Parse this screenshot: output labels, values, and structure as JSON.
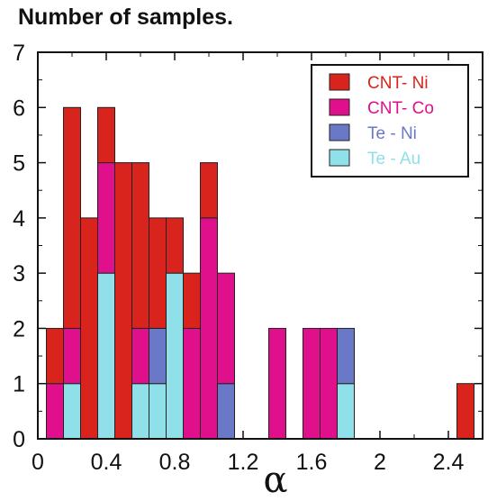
{
  "chart_data": {
    "type": "bar",
    "stacked": true,
    "title": "Number of samples.",
    "xlabel": "α",
    "ylabel": "",
    "xlim": [
      0,
      2.6
    ],
    "ylim": [
      0,
      7
    ],
    "bin_width": 0.1,
    "x_ticks": [
      "0",
      "0.4",
      "0.8",
      "1.2",
      "1.6",
      "2",
      "2.4"
    ],
    "y_ticks": [
      "0",
      "1",
      "2",
      "3",
      "4",
      "5",
      "6",
      "7"
    ],
    "legend_position": "top-right",
    "bin_centers": [
      0.1,
      0.2,
      0.3,
      0.4,
      0.5,
      0.6,
      0.7,
      0.8,
      0.9,
      1.0,
      1.1,
      1.4,
      1.6,
      1.7,
      1.8,
      2.5
    ],
    "series": [
      {
        "name": "Te - Au",
        "color": "#8fe0e8",
        "values": [
          0,
          1,
          0,
          3,
          0,
          1,
          1,
          3,
          0,
          0,
          0,
          0,
          0,
          0,
          1,
          0
        ]
      },
      {
        "name": "Te - Ni",
        "color": "#6a78c8",
        "values": [
          0,
          0,
          0,
          0,
          0,
          0,
          1,
          0,
          0,
          0,
          1,
          0,
          0,
          0,
          1,
          0
        ]
      },
      {
        "name": "CNT- Co",
        "color": "#e0108c",
        "values": [
          1,
          1,
          0,
          2,
          0,
          1,
          0,
          0,
          2,
          4,
          2,
          2,
          2,
          2,
          0,
          0
        ]
      },
      {
        "name": "CNT- Ni",
        "color": "#d8241c",
        "values": [
          1,
          4,
          4,
          1,
          5,
          3,
          2,
          1,
          1,
          1,
          0,
          0,
          0,
          0,
          0,
          1
        ]
      }
    ],
    "legend_order": [
      "CNT- Ni",
      "CNT- Co",
      "Te - Ni",
      "Te - Au"
    ]
  }
}
